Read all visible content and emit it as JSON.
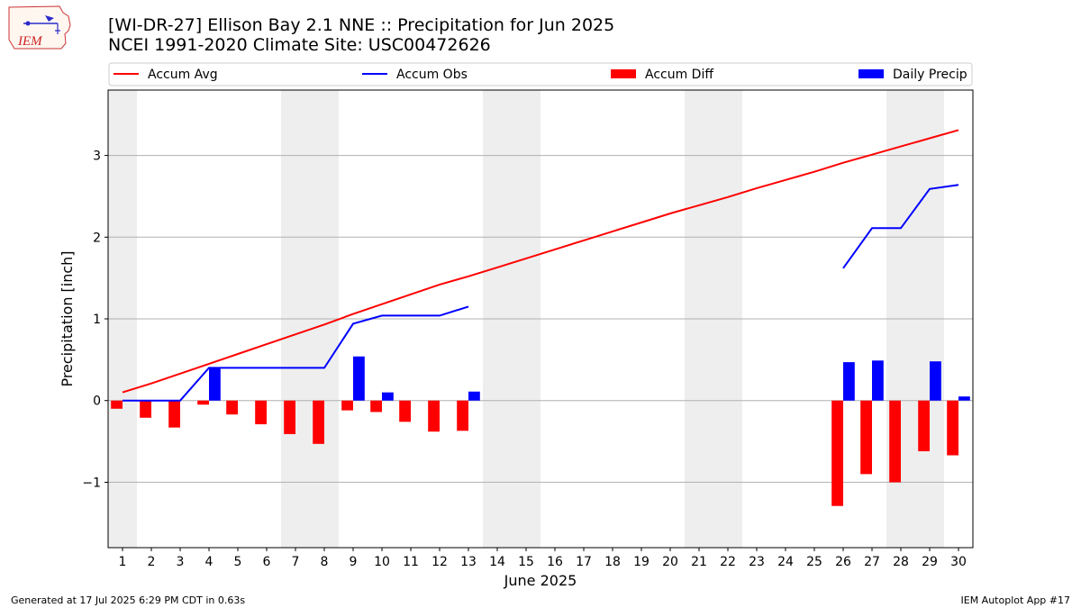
{
  "header": {
    "logo_text": "IEM",
    "title_line1": "[WI-DR-27] Ellison Bay 2.1 NNE :: Precipitation for Jun 2025",
    "title_line2": "NCEI 1991-2020 Climate Site: USC00472626"
  },
  "footer": {
    "generated": "Generated at 17 Jul 2025 6:29 PM CDT in 0.63s",
    "app": "IEM Autoplot App #17"
  },
  "chart_data": {
    "type": "bar",
    "xlabel": "June 2025",
    "ylabel": "Precipitation [inch]",
    "xlim": [
      0.5,
      30.5
    ],
    "ylim": [
      -1.8,
      3.8
    ],
    "yticks": [
      -1,
      0,
      1,
      2,
      3
    ],
    "ytick_labels": [
      "−1",
      "0",
      "1",
      "2",
      "3"
    ],
    "grid": "horizontal",
    "legend_placement": "top, above plot",
    "weekend_shading": [
      [
        0.5,
        1.5
      ],
      [
        6.5,
        8.5
      ],
      [
        13.5,
        15.5
      ],
      [
        20.5,
        22.5
      ],
      [
        27.5,
        29.5
      ]
    ],
    "colors": {
      "accum_avg": "#ff0000",
      "accum_obs": "#0000ff",
      "accum_diff": "#ff0000",
      "daily_precip": "#0000ff",
      "weekend": "#eeeeee",
      "grid": "#b0b0b0"
    },
    "legend": [
      {
        "label": "Accum Avg",
        "kind": "line",
        "color": "#ff0000"
      },
      {
        "label": "Accum Obs",
        "kind": "line",
        "color": "#0000ff"
      },
      {
        "label": "Accum Diff",
        "kind": "bar",
        "color": "#ff0000"
      },
      {
        "label": "Daily Precip",
        "kind": "bar",
        "color": "#0000ff"
      }
    ],
    "days": [
      1,
      2,
      3,
      4,
      5,
      6,
      7,
      8,
      9,
      10,
      11,
      12,
      13,
      14,
      15,
      16,
      17,
      18,
      19,
      20,
      21,
      22,
      23,
      24,
      25,
      26,
      27,
      28,
      29,
      30
    ],
    "series": [
      {
        "name": "Accum Avg",
        "kind": "line",
        "values": [
          0.1,
          0.21,
          0.33,
          0.45,
          0.57,
          0.69,
          0.81,
          0.93,
          1.06,
          1.18,
          1.3,
          1.42,
          1.52,
          1.63,
          1.74,
          1.85,
          1.96,
          2.07,
          2.18,
          2.29,
          2.39,
          2.49,
          2.6,
          2.7,
          2.8,
          2.91,
          3.01,
          3.11,
          3.21,
          3.31
        ]
      },
      {
        "name": "Accum Obs",
        "kind": "line",
        "values": [
          0.0,
          0.0,
          0.0,
          0.4,
          0.4,
          0.4,
          0.4,
          0.4,
          0.94,
          1.04,
          1.04,
          1.04,
          1.15,
          null,
          null,
          null,
          null,
          null,
          null,
          null,
          null,
          null,
          null,
          null,
          null,
          1.62,
          2.11,
          2.11,
          2.59,
          2.64
        ]
      },
      {
        "name": "Accum Diff",
        "kind": "bar",
        "values": [
          -0.1,
          -0.21,
          -0.33,
          -0.05,
          -0.17,
          -0.29,
          -0.41,
          -0.53,
          -0.12,
          -0.14,
          -0.26,
          -0.38,
          -0.37,
          null,
          null,
          null,
          null,
          null,
          null,
          null,
          null,
          null,
          null,
          null,
          null,
          -1.29,
          -0.9,
          -1.0,
          -0.62,
          -0.67
        ]
      },
      {
        "name": "Daily Precip",
        "kind": "bar",
        "values": [
          0,
          0,
          0,
          0.4,
          0,
          0,
          0,
          0,
          0.54,
          0.1,
          0,
          0,
          0.11,
          null,
          null,
          null,
          null,
          null,
          null,
          null,
          null,
          null,
          null,
          null,
          null,
          0.47,
          0.49,
          0,
          0.48,
          0.05
        ]
      }
    ]
  }
}
